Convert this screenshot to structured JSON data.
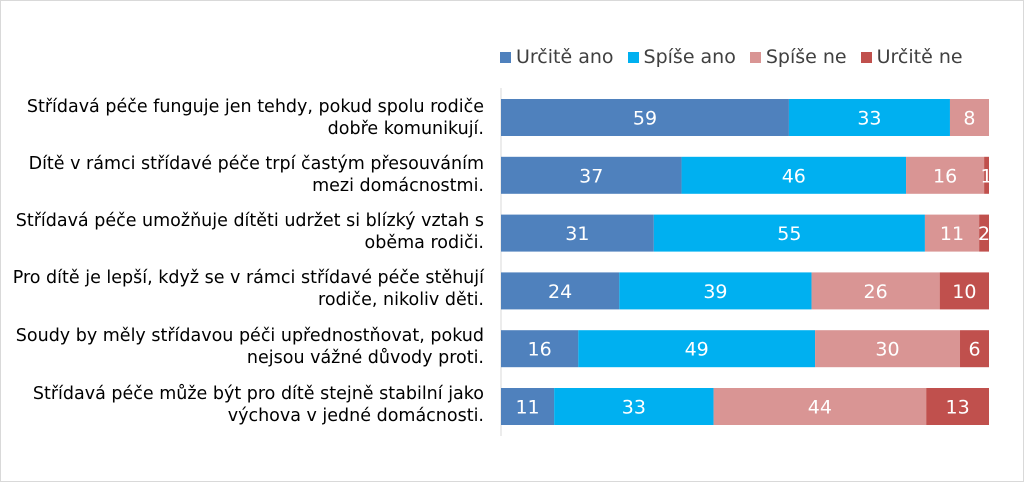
{
  "chart_data": {
    "type": "bar",
    "orientation": "horizontal",
    "stacked": true,
    "categories": [
      "Střídavá péče funguje jen tehdy, pokud spolu rodiče dobře komunikují.",
      "Dítě v rámci střídavé péče trpí častým přesouváním mezi domácnostmi.",
      "Střídavá péče umožňuje dítěti udržet si blízký vztah s oběma rodiči.",
      "Pro dítě je lepší, když se v rámci střídavé péče stěhují rodiče, nikoliv děti.",
      "Soudy by měly střídavou péči upřednostňovat, pokud nejsou vážné důvody proti.",
      "Střídavá péče může být pro dítě stejně stabilní jako výchova v jedné domácnosti."
    ],
    "series": [
      {
        "name": "Určitě ano",
        "color": "#4f81bd",
        "values": [
          59,
          37,
          31,
          24,
          16,
          11
        ]
      },
      {
        "name": "Spíše ano",
        "color": "#00b0f0",
        "values": [
          33,
          46,
          55,
          39,
          49,
          33
        ]
      },
      {
        "name": "Spíše ne",
        "color": "#d99594",
        "values": [
          8,
          16,
          11,
          26,
          30,
          44
        ]
      },
      {
        "name": "Určitě ne",
        "color": "#c0504d",
        "values": [
          0,
          1,
          2,
          10,
          6,
          13
        ]
      }
    ],
    "legend": "top"
  }
}
